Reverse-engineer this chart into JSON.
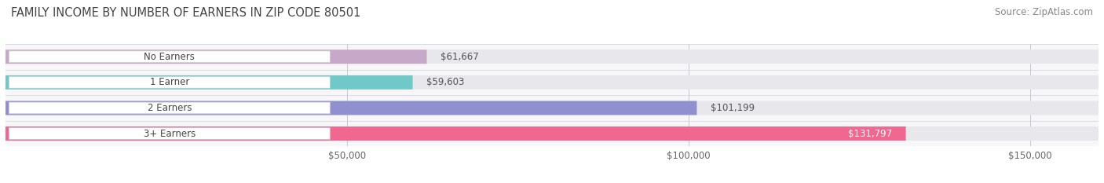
{
  "title": "FAMILY INCOME BY NUMBER OF EARNERS IN ZIP CODE 80501",
  "source": "Source: ZipAtlas.com",
  "categories": [
    "No Earners",
    "1 Earner",
    "2 Earners",
    "3+ Earners"
  ],
  "values": [
    61667,
    59603,
    101199,
    131797
  ],
  "labels": [
    "$61,667",
    "$59,603",
    "$101,199",
    "$131,797"
  ],
  "bar_colors": [
    "#c8a8c8",
    "#70c8c8",
    "#9090d0",
    "#f06890"
  ],
  "bar_bg_color": "#e8e8ec",
  "label_inside": [
    false,
    false,
    false,
    true
  ],
  "xlim": [
    0,
    160000
  ],
  "xticks": [
    50000,
    100000,
    150000
  ],
  "xtick_labels": [
    "$50,000",
    "$100,000",
    "$150,000"
  ],
  "fig_bg_color": "#ffffff",
  "plot_bg_color": "#f7f7f9",
  "title_fontsize": 10.5,
  "source_fontsize": 8.5,
  "bar_label_fontsize": 8.5,
  "category_label_fontsize": 8.5,
  "bar_height": 0.55,
  "hline_color": "#dcdce0"
}
